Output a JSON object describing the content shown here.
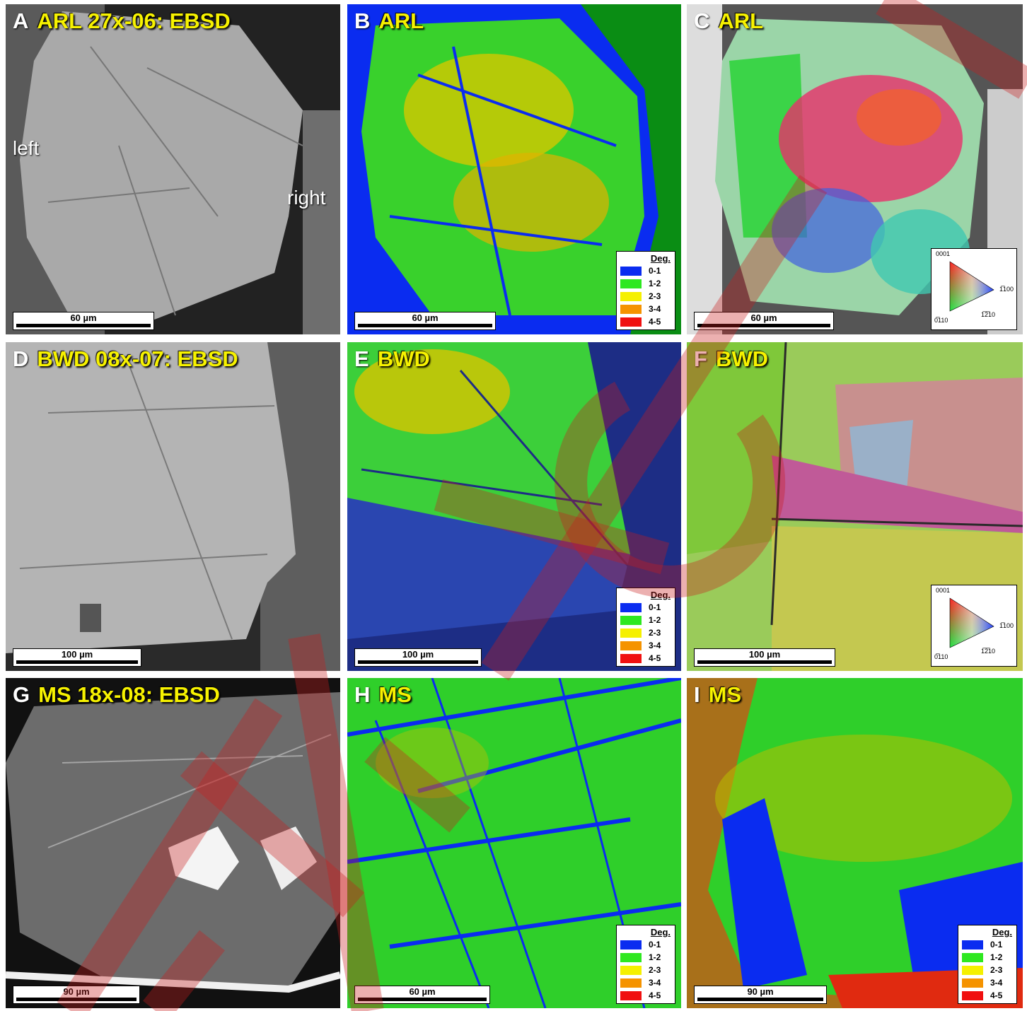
{
  "panels": {
    "A": {
      "letter": "A",
      "title": "ARL 27x-06: EBSD",
      "scale": "60  µm",
      "left_label": "left",
      "right_label": "right"
    },
    "B": {
      "letter": "B",
      "title": "ARL",
      "scale": "60  µm"
    },
    "C": {
      "letter": "C",
      "title": "ARL",
      "scale": "60  µm"
    },
    "D": {
      "letter": "D",
      "title": "BWD 08x-07: EBSD",
      "scale": "100  µm"
    },
    "E": {
      "letter": "E",
      "title": "BWD",
      "scale": "100  µm"
    },
    "F": {
      "letter": "F",
      "title": "BWD",
      "scale": "100  µm"
    },
    "G": {
      "letter": "G",
      "title": "MS 18x-08: EBSD",
      "scale": "90  µm"
    },
    "H": {
      "letter": "H",
      "title": "MS",
      "scale": "60  µm"
    },
    "I": {
      "letter": "I",
      "title": "MS",
      "scale": "90  µm"
    }
  },
  "legend": {
    "title": "Deg.",
    "items": [
      {
        "label": "0-1",
        "color": "#0a2cf0"
      },
      {
        "label": "1-2",
        "color": "#2ee820"
      },
      {
        "label": "2-3",
        "color": "#f5f000"
      },
      {
        "label": "3-4",
        "color": "#f59300"
      },
      {
        "label": "4-5",
        "color": "#f01010"
      }
    ]
  },
  "ipf_key": {
    "top": "0001",
    "right": "1̅100",
    "bottom_left": "0̅110",
    "bottom_right": "1̅2̅10"
  },
  "colors": {
    "title_yellow": "#f7f200",
    "watermark": "#c81e1e"
  }
}
